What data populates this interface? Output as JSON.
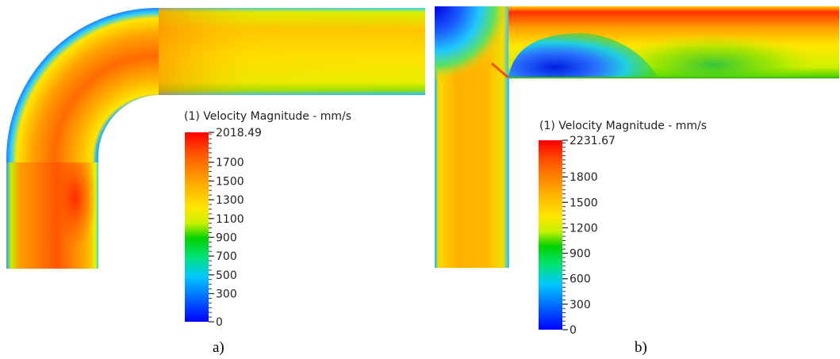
{
  "colors": {
    "scale": [
      "#0000ff",
      "#00c8ff",
      "#00e37a",
      "#00d200",
      "#c8f000",
      "#ffe600",
      "#ffaa00",
      "#ff5a00",
      "#ff0000"
    ],
    "background": "#ffffff"
  },
  "panels": [
    {
      "id": "a",
      "caption": "a)",
      "legend": {
        "title": "(1) Velocity Magnitude - mm/s",
        "max_value": 2018.49,
        "labels": [
          "2018.49",
          "1700",
          "1500",
          "1300",
          "1100",
          "900",
          "700",
          "500",
          "300",
          "0"
        ],
        "label_values": [
          2018.49,
          1700,
          1500,
          1300,
          1100,
          900,
          700,
          500,
          300,
          0
        ]
      }
    },
    {
      "id": "b",
      "caption": "b)",
      "legend": {
        "title": "(1) Velocity Magnitude - mm/s",
        "max_value": 2231.67,
        "labels": [
          "2231.67",
          "1800",
          "1500",
          "1200",
          "900",
          "600",
          "300",
          "0"
        ],
        "label_values": [
          2231.67,
          1800,
          1500,
          1200,
          900,
          600,
          300,
          0
        ]
      }
    }
  ]
}
